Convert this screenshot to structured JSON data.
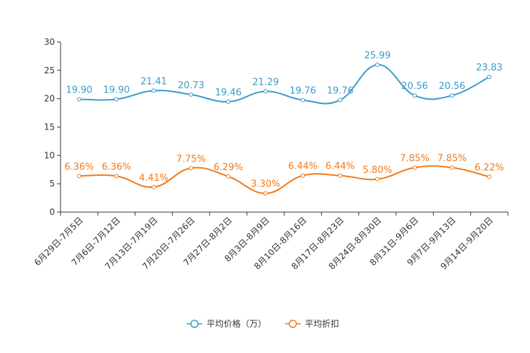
{
  "chart_data": {
    "type": "line",
    "categories": [
      "6月29日-7月5日",
      "7月6日-7月12日",
      "7月13日-7月19日",
      "7月20日-7月26日",
      "7月27日-8月2日",
      "8月3日-8月9日",
      "8月10日-8月16日",
      "8月17日-8月23日",
      "8月24日-8月30日",
      "8月31日-9月6日",
      "9月7日-9月13日",
      "9月14日-9月20日"
    ],
    "series": [
      {
        "name": "平均价格（万）",
        "color": "#3a9bc9",
        "values": [
          19.9,
          19.9,
          21.41,
          20.73,
          19.46,
          21.29,
          19.76,
          19.76,
          25.99,
          20.56,
          20.56,
          23.83
        ],
        "labels": [
          "19.90",
          "19.90",
          "21.41",
          "20.73",
          "19.46",
          "21.29",
          "19.76",
          "19.76",
          "25.99",
          "20.56",
          "20.56",
          "23.83"
        ]
      },
      {
        "name": "平均折扣",
        "color": "#f07a1a",
        "values": [
          6.36,
          6.36,
          4.41,
          7.75,
          6.29,
          3.3,
          6.44,
          6.44,
          5.8,
          7.85,
          7.85,
          6.22
        ],
        "labels": [
          "6.36%",
          "6.36%",
          "4.41%",
          "7.75%",
          "6.29%",
          "3.30%",
          "6.44%",
          "6.44%",
          "5.80%",
          "7.85%",
          "7.85%",
          "6.22%"
        ]
      }
    ],
    "yticks": [
      "0",
      "5",
      "10",
      "15",
      "20",
      "25",
      "30"
    ],
    "ylim": [
      0,
      30
    ],
    "title": "",
    "xlabel": "",
    "ylabel": "",
    "legend_position": "bottom-center"
  }
}
